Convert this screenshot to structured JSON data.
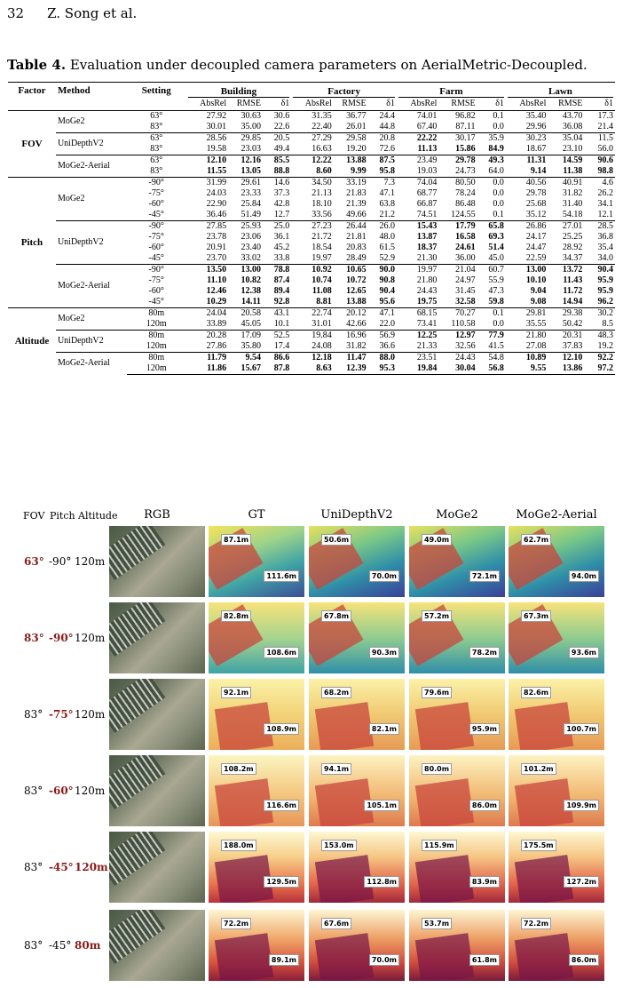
{
  "header": {
    "page": "32",
    "authors": "Z. Song et al."
  },
  "caption": {
    "label": "Table 4.",
    "text": " Evaluation under decoupled camera parameters on AerialMetric-Decoupled."
  },
  "table": {
    "col_factor": "Factor",
    "col_method": "Method",
    "col_setting": "Setting",
    "groups": [
      "Building",
      "Factory",
      "Farm",
      "Lawn"
    ],
    "metrics": [
      "AbsRel",
      "RMSE",
      "δ1"
    ]
  },
  "figure": {
    "headers": {
      "fov": "FOV",
      "pitch": "Pitch",
      "altitude": "Altitude",
      "rgb": "RGB",
      "gt": "GT",
      "uni": "UniDepthV2",
      "moge": "MoGe2",
      "aerial": "MoGe2-Aerial"
    },
    "rows": [
      {
        "fov": "63°",
        "pitch": "-90°",
        "alt": "120m",
        "gt": [
          "87.1m",
          "111.6m"
        ],
        "uni": [
          "50.6m",
          "70.0m"
        ],
        "moge": [
          "49.0m",
          "72.1m"
        ],
        "aerial": [
          "62.7m",
          "94.0m"
        ]
      },
      {
        "fov": "83°",
        "pitch": "-90°",
        "alt": "120m",
        "gt": [
          "82.8m",
          "108.6m"
        ],
        "uni": [
          "67.8m",
          "90.3m"
        ],
        "moge": [
          "57.2m",
          "78.2m"
        ],
        "aerial": [
          "67.3m",
          "93.6m"
        ]
      },
      {
        "fov": "83°",
        "pitch": "-75°",
        "alt": "120m",
        "gt": [
          "92.1m",
          "108.9m"
        ],
        "uni": [
          "68.2m",
          "82.1m"
        ],
        "moge": [
          "79.6m",
          "95.9m"
        ],
        "aerial": [
          "82.6m",
          "100.7m"
        ]
      },
      {
        "fov": "83°",
        "pitch": "-60°",
        "alt": "120m",
        "gt": [
          "108.2m",
          "116.6m"
        ],
        "uni": [
          "94.1m",
          "105.1m"
        ],
        "moge": [
          "80.0m",
          "86.0m"
        ],
        "aerial": [
          "101.2m",
          "109.9m"
        ]
      },
      {
        "fov": "83°",
        "pitch": "-45°",
        "alt": "120m",
        "gt": [
          "188.0m",
          "129.5m"
        ],
        "uni": [
          "153.0m",
          "112.8m"
        ],
        "moge": [
          "115.9m",
          "83.9m"
        ],
        "aerial": [
          "175.5m",
          "127.2m"
        ]
      },
      {
        "fov": "83°",
        "pitch": "-45°",
        "alt": "80m",
        "gt": [
          "72.2m",
          "89.1m"
        ],
        "uni": [
          "67.6m",
          "70.0m"
        ],
        "moge": [
          "53.7m",
          "61.8m"
        ],
        "aerial": [
          "72.2m",
          "86.0m"
        ]
      }
    ]
  }
}
